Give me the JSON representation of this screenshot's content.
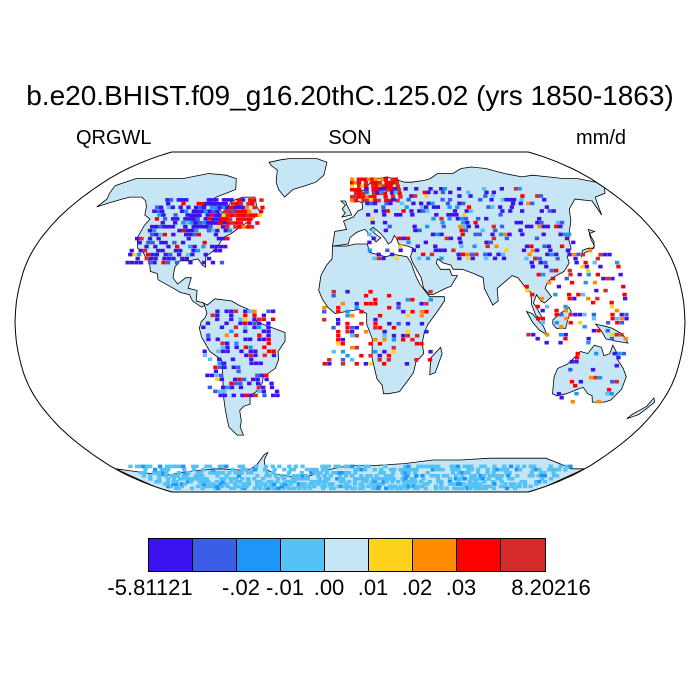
{
  "title": "b.e20.BHIST.f09_g16.20thC.125.02 (yrs 1850-1863)",
  "subtitle_left": "QRGWL",
  "subtitle_center": "SON",
  "subtitle_right": "mm/d",
  "colorbar": {
    "colors": [
      "#3c12f0",
      "#3a5fe6",
      "#1e96f8",
      "#55c2f5",
      "#c6e6f6",
      "#ffd21e",
      "#ff8c00",
      "#ff0000",
      "#d42a2a"
    ],
    "labels": [
      "-5.81121",
      "-.02",
      "-.01",
      ".00",
      ".01",
      ".02",
      ".03",
      "8.20216"
    ]
  },
  "map": {
    "projection": "Robinson",
    "ocean_color": "#ffffff",
    "land_color": "#c6e6f6",
    "coastline_color": "#000000"
  }
}
